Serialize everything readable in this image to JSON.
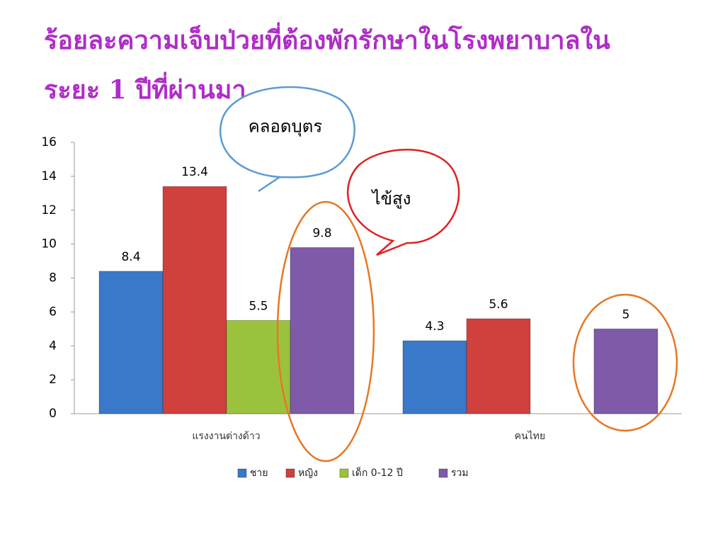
{
  "chart_data": {
    "type": "bar",
    "title": "ร้อยละความเจ็บป่วยที่ต้องพักรักษาในโรงพยาบาลใน ระยะ 1 ปีที่ผ่านมา",
    "annotations": [
      "คลอดบุตร",
      "ไข้สูง"
    ],
    "categories": [
      "แรงงานต่างด้าว",
      "คนไทย"
    ],
    "series": [
      {
        "name": "ชาย",
        "color": "#3a78c9",
        "values": [
          8.4,
          4.3
        ]
      },
      {
        "name": "หญิง",
        "color": "#d0403d",
        "values": [
          13.4,
          5.6
        ]
      },
      {
        "name": "เด็ก 0-12 ปี",
        "color": "#9bc23c",
        "values": [
          5.5,
          null
        ]
      },
      {
        "name": "รวม",
        "color": "#7f5aa8",
        "values": [
          9.8,
          5
        ]
      }
    ],
    "ylim": [
      0,
      16
    ],
    "yticks": [
      0,
      2,
      4,
      6,
      8,
      10,
      12,
      14,
      16
    ],
    "grid": false,
    "legend": "bottom"
  }
}
